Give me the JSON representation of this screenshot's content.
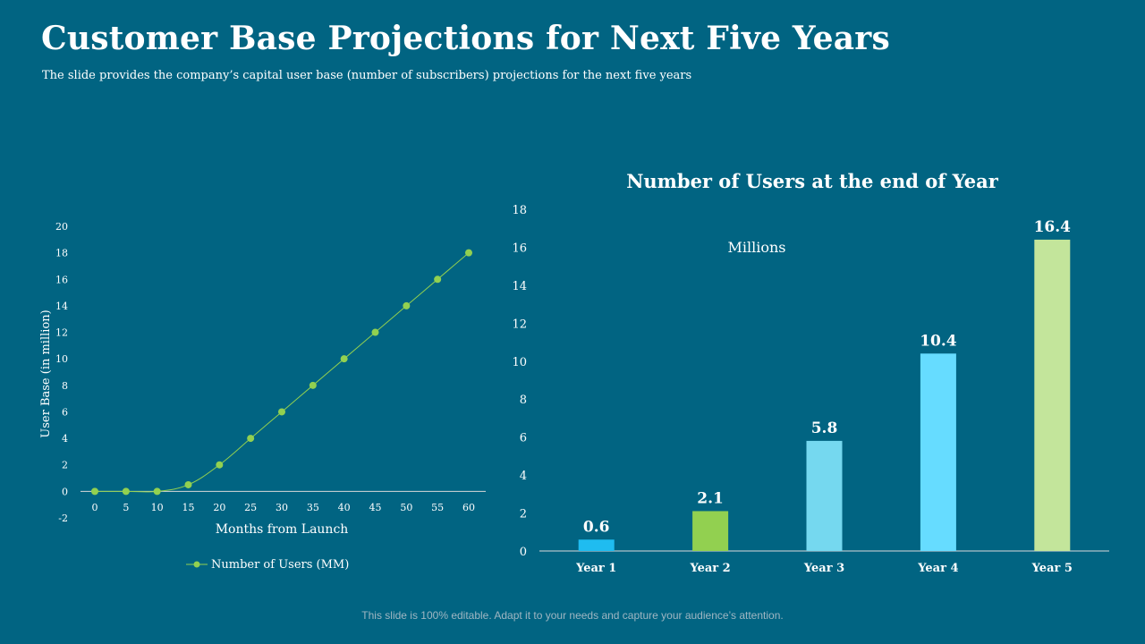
{
  "page": {
    "title": "Customer Base Projections for Next Five Years",
    "subtitle": "The slide provides the company’s capital user base (number of subscribers) projections for the next five years",
    "footer": "This slide is 100% editable. Adapt it to your needs and capture your audience’s attention.",
    "background_color": "#016482"
  },
  "chart_data": [
    {
      "type": "line",
      "title": "",
      "xlabel": "Months from Launch",
      "ylabel": "User Base (in million)",
      "x": [
        0,
        5,
        10,
        15,
        20,
        25,
        30,
        35,
        40,
        45,
        50,
        55,
        60
      ],
      "series": [
        {
          "name": "Number of Users (MM)",
          "values": [
            0,
            0,
            0,
            0.5,
            2,
            4,
            6,
            8,
            10,
            12,
            14,
            16,
            18
          ],
          "color": "#92d050"
        }
      ],
      "xticks": [
        "0",
        "5",
        "10",
        "15",
        "20",
        "25",
        "30",
        "35",
        "40",
        "45",
        "50",
        "55",
        "60"
      ],
      "yticks": [
        "-2",
        "0",
        "2",
        "4",
        "6",
        "8",
        "10",
        "12",
        "14",
        "16",
        "18",
        "20"
      ],
      "ylim": [
        -2,
        20
      ],
      "grid": false,
      "legend": "bottom"
    },
    {
      "type": "bar",
      "title": "Number of Users at the end of Year",
      "annotation": "Millions",
      "categories": [
        "Year 1",
        "Year 2",
        "Year 3",
        "Year 4",
        "Year 5"
      ],
      "values": [
        0.6,
        2.1,
        5.8,
        10.4,
        16.4
      ],
      "data_labels": [
        "0.6",
        "2.1",
        "5.8",
        "10.4",
        "16.4"
      ],
      "colors": [
        "#1fbcf0",
        "#92d050",
        "#75d8ef",
        "#66dcff",
        "#c3e59b"
      ],
      "yticks": [
        "0",
        "2",
        "4",
        "6",
        "8",
        "10",
        "12",
        "14",
        "16",
        "18"
      ],
      "ylim": [
        0,
        18
      ],
      "grid": false
    }
  ]
}
